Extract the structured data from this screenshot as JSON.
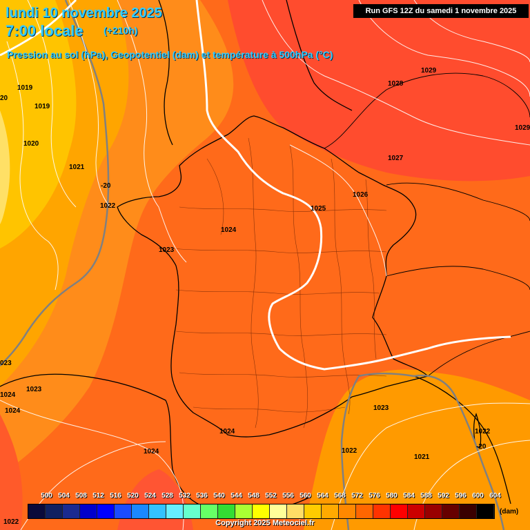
{
  "header": {
    "date": "lundi 10 novembre 2025",
    "time": "7:00 locale",
    "offset": "(+210h)",
    "parameters": "Pression au sol (hPa), Geopotentiel (dam) et température à 500hPa (°C)",
    "run": "Run GFS 12Z du samedi 1 novembre 2025"
  },
  "isobars": [
    "1019",
    "1019",
    "20",
    "1020",
    "1021",
    "1022",
    "1023",
    "1024",
    "1025",
    "1026",
    "1027",
    "1028",
    "1029",
    "1029",
    "023",
    "1023",
    "1024",
    "1024",
    "1024",
    "1024",
    "1023",
    "1022",
    "1022",
    "1021",
    "1022"
  ],
  "temperature_labels": [
    "-20",
    "-20"
  ],
  "legend": {
    "values": [
      "500",
      "504",
      "508",
      "512",
      "516",
      "520",
      "524",
      "528",
      "532",
      "536",
      "540",
      "544",
      "548",
      "552",
      "556",
      "560",
      "564",
      "568",
      "572",
      "576",
      "580",
      "584",
      "588",
      "592",
      "596",
      "600",
      "604"
    ],
    "colors": [
      "#0a0a3a",
      "#102060",
      "#1a2a90",
      "#0000cc",
      "#0000ff",
      "#1a4cff",
      "#1a88ff",
      "#33c2ff",
      "#66eeff",
      "#66ffcc",
      "#66ff66",
      "#33dd33",
      "#aaff33",
      "#ffff00",
      "#ffff99",
      "#ffdd66",
      "#ffcc00",
      "#ffaa00",
      "#ff8800",
      "#ff6600",
      "#ff3300",
      "#ff0000",
      "#cc0000",
      "#990000",
      "#660000",
      "#3a0000",
      "#000000"
    ],
    "unit": "(dam)"
  },
  "copyright": "Copyright 2025 Meteociel.fr"
}
